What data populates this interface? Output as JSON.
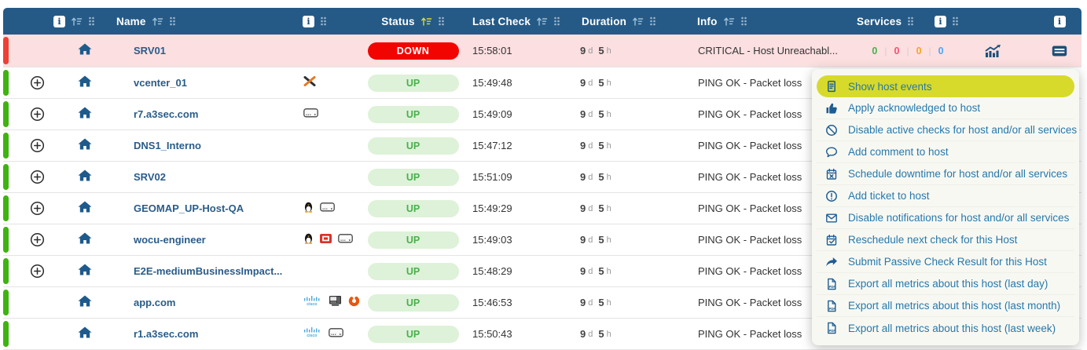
{
  "header": {
    "info_badge": "i",
    "name": "Name",
    "status": "Status",
    "last_check": "Last Check",
    "duration": "Duration",
    "info": "Info",
    "services": "Services"
  },
  "duration_units": {
    "days": "d",
    "hours": "h"
  },
  "rows": [
    {
      "name": "SRV01",
      "state": "down",
      "expand": false,
      "os_icons": [],
      "status": "DOWN",
      "last_check": "15:58:01",
      "duration": {
        "days": "9",
        "hours": "5"
      },
      "info": "CRITICAL - Host Unreachabl...",
      "services": {
        "ok": "0",
        "critical": "0",
        "warning": "0",
        "unknown": "0"
      },
      "show_chart": true,
      "show_menu_button": true
    },
    {
      "name": "vcenter_01",
      "state": "up",
      "expand": true,
      "os_icons": [
        "vmware"
      ],
      "status": "UP",
      "last_check": "15:49:48",
      "duration": {
        "days": "9",
        "hours": "5"
      },
      "info": "PING OK - Packet loss",
      "services": null,
      "show_chart": false,
      "show_menu_button": false
    },
    {
      "name": "r7.a3sec.com",
      "state": "up",
      "expand": true,
      "os_icons": [
        "drive"
      ],
      "status": "UP",
      "last_check": "15:49:09",
      "duration": {
        "days": "9",
        "hours": "5"
      },
      "info": "PING OK - Packet loss",
      "services": null,
      "show_chart": false,
      "show_menu_button": false
    },
    {
      "name": "DNS1_Interno",
      "state": "up",
      "expand": true,
      "os_icons": [],
      "status": "UP",
      "last_check": "15:47:12",
      "duration": {
        "days": "9",
        "hours": "5"
      },
      "info": "PING OK - Packet loss",
      "services": null,
      "show_chart": false,
      "show_menu_button": false
    },
    {
      "name": "SRV02",
      "state": "up",
      "expand": true,
      "os_icons": [],
      "status": "UP",
      "last_check": "15:51:09",
      "duration": {
        "days": "9",
        "hours": "5"
      },
      "info": "PING OK - Packet loss",
      "services": null,
      "show_chart": false,
      "show_menu_button": false
    },
    {
      "name": "GEOMAP_UP-Host-QA",
      "state": "up",
      "expand": true,
      "os_icons": [
        "linux",
        "drive"
      ],
      "status": "UP",
      "last_check": "15:49:29",
      "duration": {
        "days": "9",
        "hours": "5"
      },
      "info": "PING OK - Packet loss",
      "services": null,
      "show_chart": false,
      "show_menu_button": false
    },
    {
      "name": "wocu-engineer",
      "state": "up",
      "expand": true,
      "os_icons": [
        "linux",
        "fortinet",
        "drive"
      ],
      "status": "UP",
      "last_check": "15:49:03",
      "duration": {
        "days": "9",
        "hours": "5"
      },
      "info": "PING OK - Packet loss",
      "services": null,
      "show_chart": false,
      "show_menu_button": false
    },
    {
      "name": "E2E-mediumBusinessImpact...",
      "state": "up",
      "expand": true,
      "os_icons": [],
      "status": "UP",
      "last_check": "15:48:29",
      "duration": {
        "days": "9",
        "hours": "5"
      },
      "info": "PING OK - Packet loss",
      "services": null,
      "show_chart": false,
      "show_menu_button": false
    },
    {
      "name": "app.com",
      "state": "up",
      "expand": false,
      "os_icons": [
        "cisco",
        "workstation",
        "swirl"
      ],
      "status": "UP",
      "last_check": "15:46:53",
      "duration": {
        "days": "9",
        "hours": "5"
      },
      "info": "PING OK - Packet loss",
      "services": null,
      "show_chart": false,
      "show_menu_button": false
    },
    {
      "name": "r1.a3sec.com",
      "state": "up",
      "expand": false,
      "os_icons": [
        "cisco",
        "drive"
      ],
      "status": "UP",
      "last_check": "15:50:43",
      "duration": {
        "days": "9",
        "hours": "5"
      },
      "info": "PING OK - Packet loss",
      "services": null,
      "show_chart": false,
      "show_menu_button": false
    }
  ],
  "context_menu": {
    "items": [
      {
        "icon": "host-events",
        "label": "Show host events",
        "highlighted": true
      },
      {
        "icon": "thumbs-up",
        "label": "Apply acknowledged to host",
        "highlighted": false
      },
      {
        "icon": "ban",
        "label": "Disable active checks for host and/or all services",
        "highlighted": false
      },
      {
        "icon": "comment",
        "label": "Add comment to host",
        "highlighted": false
      },
      {
        "icon": "calendar-x",
        "label": "Schedule downtime for host and/or all services",
        "highlighted": false
      },
      {
        "icon": "alert-circle",
        "label": "Add ticket to host",
        "highlighted": false
      },
      {
        "icon": "envelope",
        "label": "Disable notifications for host and/or all services",
        "highlighted": false
      },
      {
        "icon": "calendar-check",
        "label": "Reschedule next check for this Host",
        "highlighted": false
      },
      {
        "icon": "share-arrow",
        "label": "Submit Passive Check Result for this Host",
        "highlighted": false
      },
      {
        "icon": "file-pdf",
        "label": "Export all metrics about this host (last day)",
        "highlighted": false
      },
      {
        "icon": "file-pdf",
        "label": "Export all metrics about this host (last month)",
        "highlighted": false
      },
      {
        "icon": "file-pdf",
        "label": "Export all metrics about this host (last week)",
        "highlighted": false
      }
    ]
  },
  "colors": {
    "header_bg": "#255a87",
    "row_down_bg": "#fcdfe0",
    "strip_down": "#ee4035",
    "strip_up": "#3fb30f",
    "status_down_bg": "#f20500",
    "status_up_bg": "#ddf2d8",
    "status_up_text": "#4aaf4e",
    "menu_highlight": "#d7da2b",
    "menu_text": "#2878a8",
    "count_ok": "#43b34a",
    "count_critical": "#f4516c",
    "count_warning": "#f7a325",
    "count_unknown": "#4ba6f5"
  }
}
